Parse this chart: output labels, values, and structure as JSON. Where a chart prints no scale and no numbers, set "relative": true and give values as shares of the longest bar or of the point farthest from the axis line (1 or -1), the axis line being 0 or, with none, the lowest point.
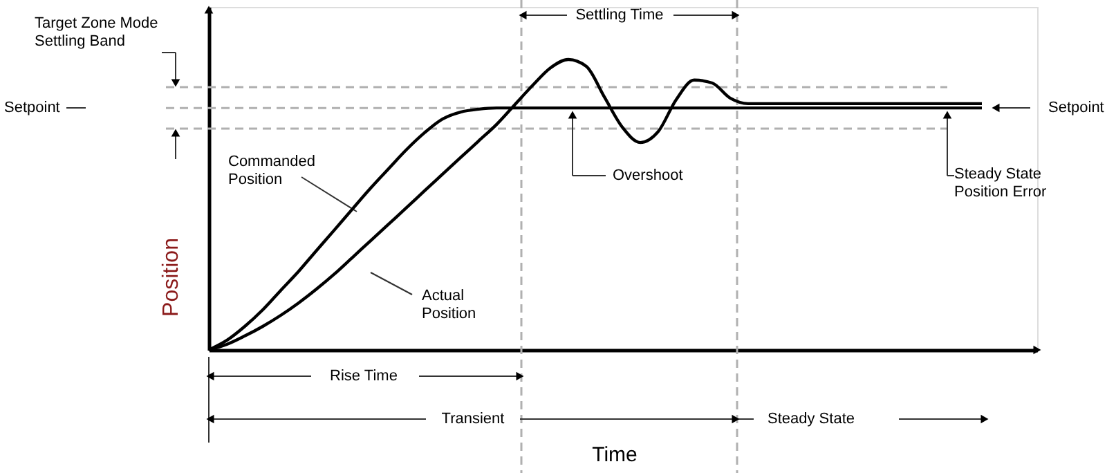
{
  "chart_data": {
    "type": "line",
    "relative": true,
    "xlabel": "Time",
    "ylabel": "Position",
    "categories": [
      null,
      null,
      null,
      null,
      null,
      null,
      null,
      null,
      null,
      null,
      null,
      null,
      null,
      null,
      null,
      null,
      null,
      null,
      null,
      null,
      null,
      null,
      null,
      null,
      null,
      null,
      null,
      null,
      null,
      null,
      null,
      null,
      null,
      null,
      null,
      null,
      null,
      null,
      null,
      null,
      null,
      null,
      null,
      null
    ],
    "series": [
      {
        "color": "#000000",
        "values": [
          0,
          0.033,
          0.081,
          0.138,
          0.205,
          0.271,
          0.343,
          0.414,
          0.486,
          0.557,
          0.624,
          0.69,
          0.748,
          0.795,
          0.819,
          0.829,
          0.833,
          0.833,
          0.833,
          0.833,
          0.833,
          0.833,
          0.833,
          0.833,
          0.833,
          0.833,
          0.833,
          0.833,
          0.833,
          0.833,
          0.833,
          0.833,
          0.833,
          0.833,
          0.833,
          0.833,
          0.833,
          0.833,
          0.833,
          0.833,
          0.833,
          0.833,
          0.833,
          0.833
        ]
      },
      {
        "color": "#000000",
        "values": [
          0,
          0.019,
          0.048,
          0.081,
          0.119,
          0.162,
          0.21,
          0.262,
          0.319,
          0.376,
          0.433,
          0.49,
          0.548,
          0.605,
          0.662,
          0.719,
          0.776,
          0.843,
          0.91,
          0.971,
          1,
          0.976,
          0.871,
          0.767,
          0.714,
          0.752,
          0.862,
          0.929,
          0.919,
          0.867,
          0.848,
          0.848,
          0.848,
          0.848,
          0.848,
          0.848,
          0.848,
          0.848,
          0.848,
          0.848,
          0.848,
          0.848,
          0.848,
          0.848
        ]
      }
    ],
    "ref_lines": [
      {
        "axis": "y",
        "value": 0.833,
        "label": null,
        "color": "#b0b0b0",
        "line_style": "dashed"
      },
      {
        "axis": "y",
        "value": 0.905,
        "label": null,
        "color": "#b0b0b0",
        "line_style": "dashed"
      },
      {
        "axis": "y",
        "value": 0.762,
        "label": null,
        "color": "#b0b0b0",
        "line_style": "dashed"
      }
    ],
    "annotations": [
      "Target Zone Mode\nSettling Band",
      "Setpoint",
      "Setpoint",
      "Commanded\nPosition",
      "Actual\nPosition",
      "Overshoot",
      "Steady State\nPosition Error",
      "Settling Time",
      "Rise Time",
      "Transient",
      "Steady State"
    ],
    "grid": false,
    "marker": "none",
    "line_style": "solid"
  }
}
